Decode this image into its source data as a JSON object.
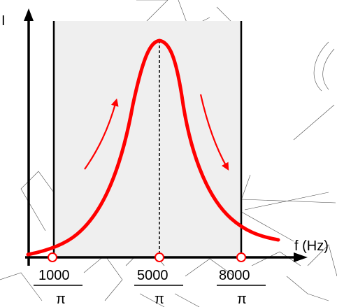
{
  "axes": {
    "y_label": "I",
    "x_label": "f (Hz)"
  },
  "ticks": [
    {
      "numerator": "1000",
      "denominator": "π"
    },
    {
      "numerator": "5000",
      "denominator": "π"
    },
    {
      "numerator": "8000",
      "denominator": "π"
    }
  ],
  "colors": {
    "curve": "#ff0000",
    "axes": "#000000",
    "band": "#efefef",
    "marker_fill": "#ffffff"
  }
}
